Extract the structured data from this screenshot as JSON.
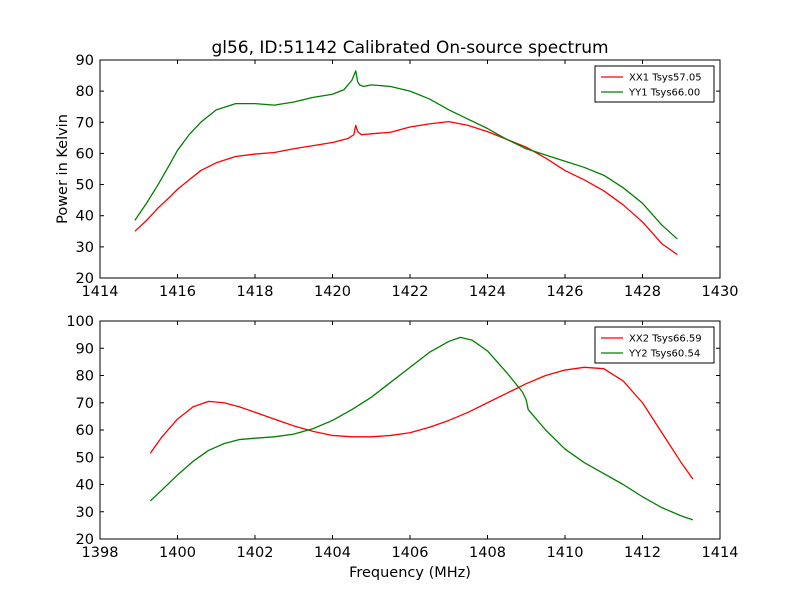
{
  "title": "gl56, ID:51142 Calibrated On-source spectrum",
  "chart_data": [
    {
      "type": "line",
      "xlim": [
        1414,
        1430
      ],
      "ylim": [
        20,
        90
      ],
      "xticks": [
        1414,
        1416,
        1418,
        1420,
        1422,
        1424,
        1426,
        1428,
        1430
      ],
      "yticks": [
        20,
        30,
        40,
        50,
        60,
        70,
        80,
        90
      ],
      "xlabel": "",
      "ylabel": "Power in Kelvin",
      "grid": false,
      "legend_position": "top-right",
      "series": [
        {
          "name": "XX1 Tsys57.05",
          "color": "#ff0000",
          "x": [
            1414.9,
            1415.2,
            1415.5,
            1415.8,
            1416.0,
            1416.3,
            1416.6,
            1417.0,
            1417.5,
            1418.0,
            1418.5,
            1419.0,
            1419.5,
            1420.0,
            1420.4,
            1420.55,
            1420.6,
            1420.65,
            1420.75,
            1421.0,
            1421.5,
            1422.0,
            1422.5,
            1423.0,
            1423.5,
            1424.0,
            1424.5,
            1425.0,
            1425.5,
            1426.0,
            1426.5,
            1427.0,
            1427.5,
            1428.0,
            1428.5,
            1428.9
          ],
          "y": [
            35.0,
            38.5,
            42.5,
            46.0,
            48.5,
            51.5,
            54.5,
            57.0,
            59.0,
            59.8,
            60.3,
            61.5,
            62.5,
            63.5,
            64.8,
            66.0,
            69.0,
            67.0,
            66.0,
            66.3,
            66.8,
            68.5,
            69.5,
            70.2,
            69.0,
            67.0,
            64.5,
            62.0,
            58.5,
            54.5,
            51.5,
            48.0,
            43.5,
            38.0,
            31.0,
            27.5
          ]
        },
        {
          "name": "YY1 Tsys66.00",
          "color": "#008000",
          "x": [
            1414.9,
            1415.2,
            1415.5,
            1415.8,
            1416.0,
            1416.3,
            1416.6,
            1417.0,
            1417.5,
            1418.0,
            1418.5,
            1419.0,
            1419.5,
            1420.0,
            1420.3,
            1420.5,
            1420.6,
            1420.65,
            1420.7,
            1420.8,
            1421.0,
            1421.5,
            1422.0,
            1422.5,
            1423.0,
            1423.5,
            1424.0,
            1424.5,
            1425.0,
            1425.5,
            1426.0,
            1426.5,
            1427.0,
            1427.5,
            1428.0,
            1428.5,
            1428.9
          ],
          "y": [
            38.5,
            44.0,
            50.0,
            56.5,
            61.0,
            66.0,
            70.0,
            74.0,
            76.0,
            76.0,
            75.5,
            76.5,
            78.0,
            79.0,
            80.5,
            83.5,
            86.5,
            83.0,
            82.0,
            81.5,
            82.0,
            81.5,
            80.0,
            77.5,
            74.0,
            71.0,
            68.0,
            64.5,
            61.5,
            59.5,
            57.5,
            55.5,
            53.0,
            49.0,
            44.0,
            37.0,
            32.5
          ]
        }
      ]
    },
    {
      "type": "line",
      "xlim": [
        1398,
        1414
      ],
      "ylim": [
        20,
        100
      ],
      "xticks": [
        1398,
        1400,
        1402,
        1404,
        1406,
        1408,
        1410,
        1412,
        1414
      ],
      "yticks": [
        20,
        30,
        40,
        50,
        60,
        70,
        80,
        90,
        100
      ],
      "xlabel": "Frequency (MHz)",
      "ylabel": "",
      "grid": false,
      "legend_position": "top-right",
      "series": [
        {
          "name": "XX2 Tsys66.59",
          "color": "#ff0000",
          "x": [
            1399.3,
            1399.6,
            1400.0,
            1400.4,
            1400.8,
            1401.2,
            1401.6,
            1402.0,
            1402.5,
            1403.0,
            1403.5,
            1404.0,
            1404.5,
            1405.0,
            1405.5,
            1406.0,
            1406.5,
            1407.0,
            1407.5,
            1408.0,
            1408.5,
            1409.0,
            1409.5,
            1410.0,
            1410.5,
            1411.0,
            1411.5,
            1412.0,
            1412.5,
            1413.0,
            1413.3
          ],
          "y": [
            51.5,
            57.5,
            64.0,
            68.5,
            70.5,
            70.0,
            68.5,
            66.5,
            64.0,
            61.5,
            59.5,
            58.0,
            57.5,
            57.5,
            58.0,
            59.0,
            61.0,
            63.5,
            66.5,
            70.0,
            73.5,
            77.0,
            80.0,
            82.0,
            83.0,
            82.5,
            78.0,
            70.0,
            59.0,
            48.0,
            42.0
          ]
        },
        {
          "name": "YY2 Tsys60.54",
          "color": "#008000",
          "x": [
            1399.3,
            1399.6,
            1400.0,
            1400.4,
            1400.8,
            1401.2,
            1401.6,
            1402.0,
            1402.5,
            1403.0,
            1403.5,
            1404.0,
            1404.5,
            1405.0,
            1405.5,
            1406.0,
            1406.5,
            1407.0,
            1407.3,
            1407.6,
            1408.0,
            1408.5,
            1408.9,
            1409.0,
            1409.05,
            1409.5,
            1410.0,
            1410.5,
            1411.0,
            1411.5,
            1412.0,
            1412.5,
            1413.0,
            1413.3
          ],
          "y": [
            34.0,
            38.0,
            43.5,
            48.5,
            52.5,
            55.0,
            56.5,
            57.0,
            57.5,
            58.5,
            60.5,
            63.5,
            67.5,
            72.0,
            77.5,
            83.0,
            88.5,
            92.5,
            94.0,
            93.0,
            89.0,
            81.0,
            74.0,
            71.0,
            67.5,
            60.0,
            53.0,
            48.0,
            44.0,
            40.0,
            35.5,
            31.5,
            28.5,
            27.0
          ]
        }
      ]
    }
  ]
}
